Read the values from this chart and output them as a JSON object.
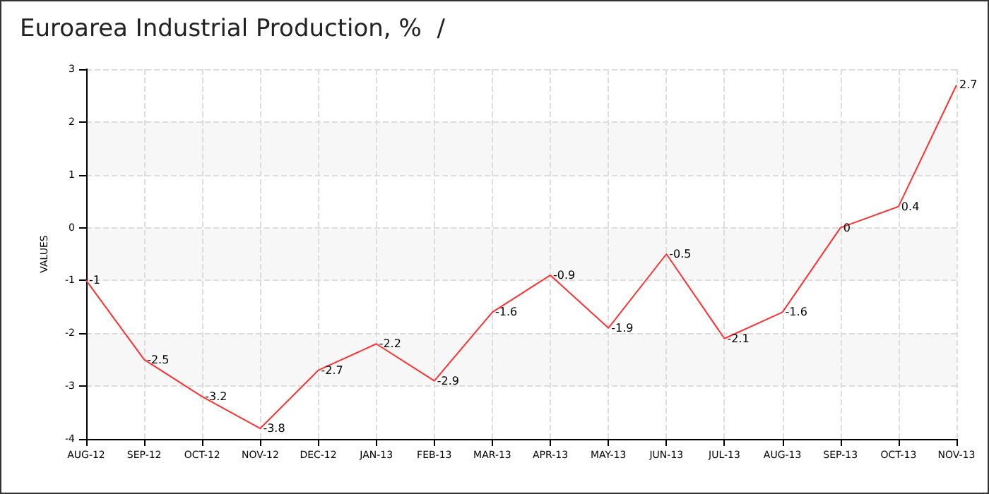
{
  "chart_data": {
    "type": "line",
    "title": "Euroarea Industrial Production, %  /",
    "ylabel": "VALUES",
    "categories": [
      "AUG-12",
      "SEP-12",
      "OCT-12",
      "NOV-12",
      "DEC-12",
      "JAN-13",
      "FEB-13",
      "MAR-13",
      "APR-13",
      "MAY-13",
      "JUN-13",
      "JUL-13",
      "AUG-13",
      "SEP-13",
      "OCT-13",
      "NOV-13"
    ],
    "series": [
      {
        "color": "#ff3333",
        "values": [
          -1,
          -2.5,
          -3.2,
          -3.8,
          -2.7,
          -2.2,
          -2.9,
          -1.6,
          -0.9,
          -1.9,
          -0.5,
          -2.1,
          -1.6,
          0,
          0.4,
          2.7
        ]
      }
    ],
    "ylim": [
      -4,
      3
    ],
    "yticks": [
      -4,
      -3,
      -2,
      -1,
      0,
      1,
      2,
      3
    ],
    "grid": true,
    "data_labels": true,
    "marker": "none",
    "line_style": "solid"
  }
}
